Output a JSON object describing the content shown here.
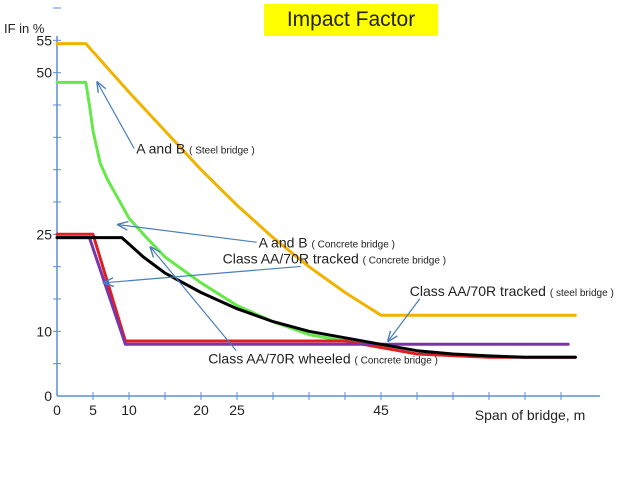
{
  "chart_data": {
    "type": "line",
    "title": "Impact Factor",
    "xlabel": "Span of bridge, m",
    "ylabel": "IF in %",
    "xlim": [
      0,
      75
    ],
    "ylim": [
      0,
      60
    ],
    "x_ticks": [
      0,
      5,
      10,
      20,
      25,
      45
    ],
    "y_ticks": [
      0,
      10,
      25,
      50,
      55
    ],
    "colors": {
      "title_bg": "#FFFF00",
      "axis": "#5b8fd6",
      "annotation": "#4a7ebb"
    },
    "series": [
      {
        "name": "steel_ab",
        "color": "#F0B400",
        "x": [
          0,
          4,
          10,
          15,
          20,
          25,
          30,
          35,
          40,
          45,
          55,
          65,
          72
        ],
        "y": [
          54.5,
          54.5,
          47,
          41,
          35,
          29.5,
          24.5,
          20,
          16,
          12.5,
          12.5,
          12.5,
          12.5
        ]
      },
      {
        "name": "concrete_ab",
        "color": "#66E84A",
        "x": [
          0,
          4,
          4.5,
          5,
          6,
          7,
          8,
          9,
          10,
          12,
          15,
          20,
          25,
          30,
          35,
          40,
          43
        ],
        "y": [
          48.5,
          48.5,
          45,
          41,
          36,
          33.5,
          31.5,
          29.5,
          27.5,
          25,
          21.5,
          17.5,
          14,
          11.5,
          9.5,
          8.5,
          8
        ]
      },
      {
        "name": "aa_70r_wheeled_concrete",
        "color": "#E02020",
        "x": [
          0,
          5,
          9.5,
          20,
          40,
          50,
          60,
          72
        ],
        "y": [
          25,
          25,
          8.5,
          8.5,
          8.5,
          6.5,
          6,
          6
        ]
      },
      {
        "name": "aa_70r_tracked_steel",
        "color": "#7B35A8",
        "x": [
          0,
          4.5,
          9.5,
          20,
          45,
          60,
          71
        ],
        "y": [
          24.5,
          24.5,
          8,
          8,
          8,
          8,
          8
        ]
      },
      {
        "name": "aa_70r_tracked_concrete",
        "color": "#000000",
        "x": [
          0,
          9,
          12,
          15,
          20,
          25,
          30,
          35,
          40,
          45,
          50,
          55,
          60,
          65,
          72
        ],
        "y": [
          24.5,
          24.5,
          21.5,
          19,
          16,
          13.5,
          11.5,
          10,
          9,
          8,
          7,
          6.5,
          6.2,
          6,
          6
        ]
      }
    ],
    "annotations": [
      {
        "text": "A and B",
        "note": "( Steel bridge )",
        "tx": 11,
        "ty": 37.5,
        "ax": 5.6,
        "ay": 48.5
      },
      {
        "text": "A and B",
        "note": "( Concrete bridge )",
        "tx": 28,
        "ty": 23,
        "ax": 8.5,
        "ay": 26.5
      },
      {
        "text": "Class AA/70R tracked",
        "note": "( Concrete bridge )",
        "tx": 23,
        "ty": 20.5,
        "ax": 6.5,
        "ay": 17.5
      },
      {
        "text": "Class AA/70R tracked",
        "note": "( steel bridge )",
        "tx": 49,
        "ty": 15.5,
        "ax": 46,
        "ay": 8.5
      },
      {
        "text": "Class AA/70R wheeled",
        "note": "( Concrete bridge )",
        "tx": 21,
        "ty": 5,
        "ax": 13,
        "ay": 23
      }
    ]
  }
}
